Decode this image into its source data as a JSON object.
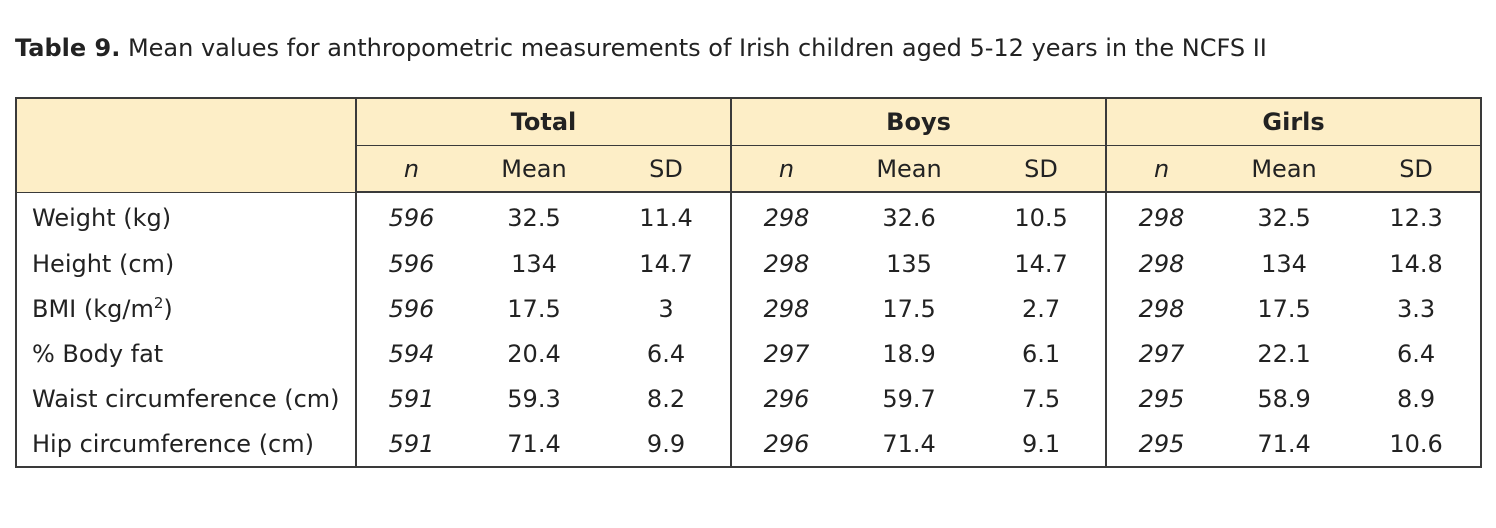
{
  "caption": {
    "label": "Table 9.",
    "text": " Mean values for anthropometric measurements of Irish children aged 5-12 years in the NCFS II"
  },
  "table": {
    "groups": [
      "Total",
      "Boys",
      "Girls"
    ],
    "subheaders": [
      "n",
      "Mean",
      "SD"
    ],
    "rows": [
      {
        "label": "Weight (kg)",
        "label_sup": "",
        "label_after": "",
        "values": [
          "596",
          "32.5",
          "11.4",
          "298",
          "32.6",
          "10.5",
          "298",
          "32.5",
          "12.3"
        ]
      },
      {
        "label": "Height (cm)",
        "label_sup": "",
        "label_after": "",
        "values": [
          "596",
          "134",
          "14.7",
          "298",
          "135",
          "14.7",
          "298",
          "134",
          "14.8"
        ]
      },
      {
        "label": "BMI (kg/m",
        "label_sup": "2",
        "label_after": ")",
        "values": [
          "596",
          "17.5",
          "3",
          "298",
          "17.5",
          "2.7",
          "298",
          "17.5",
          "3.3"
        ]
      },
      {
        "label": "% Body fat",
        "label_sup": "",
        "label_after": "",
        "values": [
          "594",
          "20.4",
          "6.4",
          "297",
          "18.9",
          "6.1",
          "297",
          "22.1",
          "6.4"
        ]
      },
      {
        "label": "Waist circumference (cm)",
        "label_sup": "",
        "label_after": "",
        "values": [
          "591",
          "59.3",
          "8.2",
          "296",
          "59.7",
          "7.5",
          "295",
          "58.9",
          "8.9"
        ]
      },
      {
        "label": "Hip circumference (cm)",
        "label_sup": "",
        "label_after": "",
        "values": [
          "591",
          "71.4",
          "9.9",
          "296",
          "71.4",
          "9.1",
          "295",
          "71.4",
          "10.6"
        ]
      }
    ]
  },
  "colors": {
    "header_background": "#fdeec7",
    "border": "#3a3a3a",
    "text": "#222222"
  }
}
